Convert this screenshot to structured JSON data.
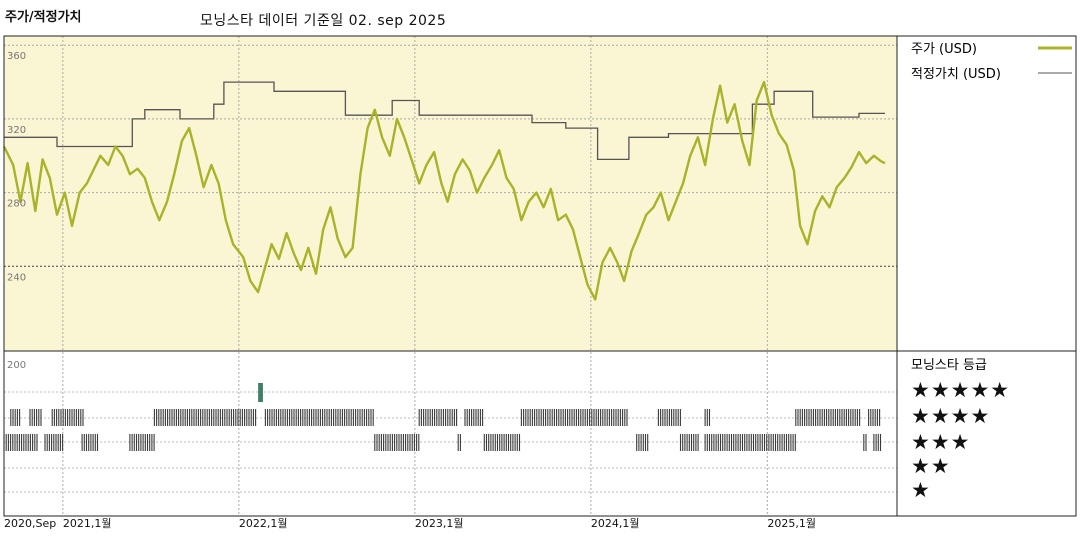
{
  "header": {
    "left_title": "주가/적정가치",
    "main_title": "모닝스타 데이터 기준일 02. sep 2025"
  },
  "legend": {
    "price_label": "주가 (USD)",
    "fair_value_label": "적정가치 (USD)",
    "rating_title": "모닝스타 등급",
    "stars": [
      "★★★★★",
      "★★★★",
      "★★★",
      "★★",
      "★"
    ]
  },
  "colors": {
    "price_line": "#a8b32a",
    "fair_value_line": "#555555",
    "plot_background": "#faf5d2",
    "rating_bar": "#3a3a3a",
    "rating_5star_mark": "#3f7f6a"
  },
  "chart_data": {
    "type": "line",
    "title": "모닝스타 데이터 기준일 02. sep 2025",
    "ylabel": "주가/적정가치",
    "ylim": [
      200,
      365
    ],
    "y_ticks": [
      360,
      320,
      280,
      240,
      200
    ],
    "x_range": [
      "2020-09-01",
      "2025-09-02"
    ],
    "x_ticks": [
      {
        "date": "2020-09-01",
        "label": "2020,Sep"
      },
      {
        "date": "2021-01-01",
        "label": "2021,1월"
      },
      {
        "date": "2022-01-01",
        "label": "2022,1월"
      },
      {
        "date": "2023-01-01",
        "label": "2023,1월"
      },
      {
        "date": "2024-01-01",
        "label": "2024,1월"
      },
      {
        "date": "2025-01-01",
        "label": "2025,1월"
      }
    ],
    "series": [
      {
        "name": "주가 (USD)",
        "points": [
          [
            "2020-09-01",
            305
          ],
          [
            "2020-09-20",
            295
          ],
          [
            "2020-10-05",
            275
          ],
          [
            "2020-10-20",
            296
          ],
          [
            "2020-11-05",
            270
          ],
          [
            "2020-11-20",
            298
          ],
          [
            "2020-12-05",
            288
          ],
          [
            "2020-12-20",
            268
          ],
          [
            "2021-01-05",
            280
          ],
          [
            "2021-01-20",
            262
          ],
          [
            "2021-02-05",
            280
          ],
          [
            "2021-02-20",
            285
          ],
          [
            "2021-03-05",
            292
          ],
          [
            "2021-03-20",
            300
          ],
          [
            "2021-04-05",
            295
          ],
          [
            "2021-04-20",
            305
          ],
          [
            "2021-05-05",
            300
          ],
          [
            "2021-05-20",
            290
          ],
          [
            "2021-06-05",
            293
          ],
          [
            "2021-06-20",
            288
          ],
          [
            "2021-07-05",
            275
          ],
          [
            "2021-07-20",
            265
          ],
          [
            "2021-08-05",
            275
          ],
          [
            "2021-08-20",
            290
          ],
          [
            "2021-09-05",
            308
          ],
          [
            "2021-09-20",
            315
          ],
          [
            "2021-10-05",
            300
          ],
          [
            "2021-10-20",
            283
          ],
          [
            "2021-11-05",
            295
          ],
          [
            "2021-11-20",
            285
          ],
          [
            "2021-12-05",
            265
          ],
          [
            "2021-12-20",
            252
          ],
          [
            "2022-01-10",
            245
          ],
          [
            "2022-01-25",
            232
          ],
          [
            "2022-02-10",
            226
          ],
          [
            "2022-02-25",
            240
          ],
          [
            "2022-03-10",
            252
          ],
          [
            "2022-03-25",
            244
          ],
          [
            "2022-04-10",
            258
          ],
          [
            "2022-04-25",
            247
          ],
          [
            "2022-05-10",
            238
          ],
          [
            "2022-05-25",
            250
          ],
          [
            "2022-06-10",
            236
          ],
          [
            "2022-06-25",
            260
          ],
          [
            "2022-07-10",
            272
          ],
          [
            "2022-07-25",
            255
          ],
          [
            "2022-08-10",
            245
          ],
          [
            "2022-08-25",
            250
          ],
          [
            "2022-09-10",
            290
          ],
          [
            "2022-09-25",
            315
          ],
          [
            "2022-10-10",
            325
          ],
          [
            "2022-10-25",
            310
          ],
          [
            "2022-11-10",
            300
          ],
          [
            "2022-11-25",
            320
          ],
          [
            "2022-12-10",
            310
          ],
          [
            "2022-12-25",
            298
          ],
          [
            "2023-01-10",
            285
          ],
          [
            "2023-01-25",
            295
          ],
          [
            "2023-02-10",
            302
          ],
          [
            "2023-02-25",
            285
          ],
          [
            "2023-03-10",
            275
          ],
          [
            "2023-03-25",
            290
          ],
          [
            "2023-04-10",
            298
          ],
          [
            "2023-04-25",
            292
          ],
          [
            "2023-05-10",
            280
          ],
          [
            "2023-05-25",
            288
          ],
          [
            "2023-06-10",
            295
          ],
          [
            "2023-06-25",
            303
          ],
          [
            "2023-07-10",
            288
          ],
          [
            "2023-07-25",
            282
          ],
          [
            "2023-08-10",
            265
          ],
          [
            "2023-08-25",
            275
          ],
          [
            "2023-09-10",
            280
          ],
          [
            "2023-09-25",
            272
          ],
          [
            "2023-10-10",
            282
          ],
          [
            "2023-10-25",
            265
          ],
          [
            "2023-11-10",
            268
          ],
          [
            "2023-11-25",
            260
          ],
          [
            "2023-12-10",
            245
          ],
          [
            "2023-12-25",
            230
          ],
          [
            "2024-01-10",
            222
          ],
          [
            "2024-01-25",
            242
          ],
          [
            "2024-02-10",
            250
          ],
          [
            "2024-02-25",
            242
          ],
          [
            "2024-03-10",
            232
          ],
          [
            "2024-03-25",
            248
          ],
          [
            "2024-04-10",
            258
          ],
          [
            "2024-04-25",
            268
          ],
          [
            "2024-05-10",
            272
          ],
          [
            "2024-05-25",
            280
          ],
          [
            "2024-06-10",
            265
          ],
          [
            "2024-06-25",
            275
          ],
          [
            "2024-07-10",
            285
          ],
          [
            "2024-07-25",
            300
          ],
          [
            "2024-08-10",
            310
          ],
          [
            "2024-08-25",
            295
          ],
          [
            "2024-09-10",
            320
          ],
          [
            "2024-09-25",
            338
          ],
          [
            "2024-10-10",
            318
          ],
          [
            "2024-10-25",
            328
          ],
          [
            "2024-11-10",
            308
          ],
          [
            "2024-11-25",
            295
          ],
          [
            "2024-12-10",
            330
          ],
          [
            "2024-12-25",
            340
          ],
          [
            "2025-01-10",
            322
          ],
          [
            "2025-01-25",
            312
          ],
          [
            "2025-02-10",
            306
          ],
          [
            "2025-02-25",
            292
          ],
          [
            "2025-03-10",
            262
          ],
          [
            "2025-03-25",
            252
          ],
          [
            "2025-04-10",
            270
          ],
          [
            "2025-04-25",
            278
          ],
          [
            "2025-05-10",
            272
          ],
          [
            "2025-05-25",
            283
          ],
          [
            "2025-06-10",
            288
          ],
          [
            "2025-06-25",
            294
          ],
          [
            "2025-07-10",
            302
          ],
          [
            "2025-07-25",
            296
          ],
          [
            "2025-08-10",
            300
          ],
          [
            "2025-08-25",
            297
          ],
          [
            "2025-09-02",
            296
          ]
        ]
      },
      {
        "name": "적정가치 (USD)",
        "points": [
          [
            "2020-09-01",
            310
          ],
          [
            "2020-12-20",
            310
          ],
          [
            "2020-12-20",
            305
          ],
          [
            "2021-05-25",
            305
          ],
          [
            "2021-05-25",
            320
          ],
          [
            "2021-06-20",
            320
          ],
          [
            "2021-06-20",
            325
          ],
          [
            "2021-09-01",
            325
          ],
          [
            "2021-09-01",
            320
          ],
          [
            "2021-11-10",
            320
          ],
          [
            "2021-11-10",
            328
          ],
          [
            "2021-12-01",
            328
          ],
          [
            "2021-12-01",
            340
          ],
          [
            "2022-03-15",
            340
          ],
          [
            "2022-03-15",
            335
          ],
          [
            "2022-08-10",
            335
          ],
          [
            "2022-08-10",
            322
          ],
          [
            "2022-11-15",
            322
          ],
          [
            "2022-11-15",
            330
          ],
          [
            "2023-01-10",
            330
          ],
          [
            "2023-01-10",
            322
          ],
          [
            "2023-09-01",
            322
          ],
          [
            "2023-09-01",
            318
          ],
          [
            "2023-11-10",
            318
          ],
          [
            "2023-11-10",
            315
          ],
          [
            "2024-01-15",
            315
          ],
          [
            "2024-01-15",
            298
          ],
          [
            "2024-03-20",
            298
          ],
          [
            "2024-03-20",
            310
          ],
          [
            "2024-06-10",
            310
          ],
          [
            "2024-06-10",
            312
          ],
          [
            "2024-12-01",
            312
          ],
          [
            "2024-12-01",
            328
          ],
          [
            "2025-01-15",
            328
          ],
          [
            "2025-01-15",
            335
          ],
          [
            "2025-04-05",
            335
          ],
          [
            "2025-04-05",
            321
          ],
          [
            "2025-07-10",
            321
          ],
          [
            "2025-07-10",
            323
          ],
          [
            "2025-09-02",
            323
          ]
        ]
      }
    ],
    "ratings": [
      {
        "stars": 5,
        "periods": [
          [
            "2022-02-10",
            "2022-02-20"
          ]
        ]
      },
      {
        "stars": 4,
        "periods": [
          [
            "2020-09-15",
            "2020-10-05"
          ],
          [
            "2020-10-25",
            "2020-11-20"
          ],
          [
            "2020-12-10",
            "2021-02-15"
          ],
          [
            "2021-07-10",
            "2022-02-05"
          ],
          [
            "2022-02-25",
            "2022-10-10"
          ],
          [
            "2023-01-10",
            "2023-04-01"
          ],
          [
            "2023-04-15",
            "2023-05-25"
          ],
          [
            "2023-08-10",
            "2024-03-20"
          ],
          [
            "2024-05-20",
            "2024-07-05"
          ],
          [
            "2024-08-25",
            "2024-09-05"
          ],
          [
            "2025-03-01",
            "2025-07-15"
          ],
          [
            "2025-07-30",
            "2025-08-25"
          ]
        ]
      },
      {
        "stars": 3,
        "periods": [
          [
            "2020-09-01",
            "2020-11-10"
          ],
          [
            "2020-11-25",
            "2021-01-01"
          ],
          [
            "2021-02-10",
            "2021-03-15"
          ],
          [
            "2021-05-20",
            "2021-07-10"
          ],
          [
            "2022-10-10",
            "2023-01-10"
          ],
          [
            "2023-04-01",
            "2023-04-10"
          ],
          [
            "2023-05-25",
            "2023-08-10"
          ],
          [
            "2024-04-05",
            "2024-04-30"
          ],
          [
            "2024-07-05",
            "2024-08-15"
          ],
          [
            "2024-08-25",
            "2025-03-01"
          ],
          [
            "2025-07-20",
            "2025-07-28"
          ],
          [
            "2025-08-10",
            "2025-08-28"
          ]
        ]
      }
    ]
  }
}
